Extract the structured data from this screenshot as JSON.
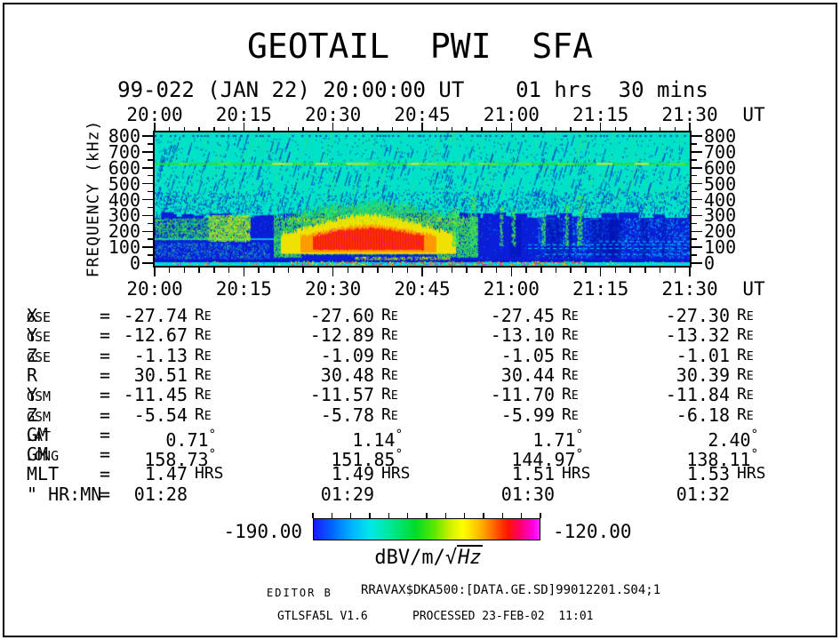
{
  "title": "GEOTAIL  PWI  SFA",
  "subtitle": "99-022 (JAN 22) 20:00:00 UT    01 hrs  30 mins",
  "time_axis": {
    "labels": [
      "20:00",
      "20:15",
      "20:30",
      "20:45",
      "21:00",
      "21:15",
      "21:30"
    ],
    "unit_label": "UT"
  },
  "freq_axis": {
    "title": "FREQUENCY (kHz)",
    "labels": [
      "800",
      "700",
      "600",
      "500",
      "400",
      "300",
      "200",
      "100",
      "0"
    ]
  },
  "ephemeris": {
    "equals_sign": "=",
    "units": {
      "Re": {
        "main": "R",
        "sub": "E"
      },
      "deg": "°",
      "hrs": "HRS"
    },
    "rows": [
      {
        "label": "X",
        "sub": "GSE",
        "unit": "Re",
        "values": [
          "-27.74",
          "-27.60",
          "-27.45",
          "-27.30"
        ]
      },
      {
        "label": "Y",
        "sub": "GSE",
        "unit": "Re",
        "values": [
          "-12.67",
          "-12.89",
          "-13.10",
          "-13.32"
        ]
      },
      {
        "label": "Z",
        "sub": "GSE",
        "unit": "Re",
        "values": [
          "-1.13",
          "-1.09",
          "-1.05",
          "-1.01"
        ]
      },
      {
        "label": "R",
        "sub": "",
        "unit": "Re",
        "values": [
          "30.51",
          "30.48",
          "30.44",
          "30.39"
        ]
      },
      {
        "label": "Y",
        "sub": "GSM",
        "unit": "Re",
        "values": [
          "-11.45",
          "-11.57",
          "-11.70",
          "-11.84"
        ]
      },
      {
        "label": "Z",
        "sub": "GSM",
        "unit": "Re",
        "values": [
          "-5.54",
          "-5.78",
          "-5.99",
          "-6.18"
        ]
      },
      {
        "label": "GM",
        "sub": "LAT",
        "unit": "deg",
        "values": [
          "0.71",
          "1.14",
          "1.71",
          "2.40"
        ]
      },
      {
        "label": "GM",
        "sub": "LONG",
        "unit": "deg",
        "values": [
          "158.73",
          "151.85",
          "144.97",
          "138.11"
        ]
      },
      {
        "label": "MLT",
        "sub": "",
        "unit": "hrs",
        "values": [
          "1.47",
          "1.49",
          "1.51",
          "1.53"
        ]
      },
      {
        "label": "\" HR:MN",
        "sub": "",
        "unit": "",
        "values": [
          "01:28",
          "01:29",
          "01:30",
          "01:32"
        ]
      }
    ]
  },
  "colorbar": {
    "min_label": "-190.00",
    "max_label": "-120.00",
    "unit_label": "dBV/m/√Hz",
    "unit_prefix": "dBV/m/",
    "radical": "√",
    "radicand": "Hz",
    "gradient": [
      [
        "#1A1AFF",
        0
      ],
      [
        "#0064FF",
        8
      ],
      [
        "#00B4FF",
        17
      ],
      [
        "#00E8E8",
        25
      ],
      [
        "#00E8A0",
        33
      ],
      [
        "#00DC28",
        45
      ],
      [
        "#64E800",
        54
      ],
      [
        "#C8F000",
        60
      ],
      [
        "#FFFF00",
        66
      ],
      [
        "#FFC800",
        72
      ],
      [
        "#FF8C00",
        77
      ],
      [
        "#FF4600",
        82
      ],
      [
        "#FF1400",
        86
      ],
      [
        "#FF0064",
        91
      ],
      [
        "#FF00DC",
        97
      ],
      [
        "#FF28FF",
        100
      ]
    ]
  },
  "footer": {
    "editor": "EDITOR B",
    "file": "RRAVAX$DKA500:[DATA.GE.SD]99012201.S04;1",
    "program": "GTLSFA5L V1.6",
    "processed": "PROCESSED 23-FEB-02  11:01"
  },
  "chart_data": {
    "type": "heatmap",
    "subtype": "radio-spectrogram",
    "title": "GEOTAIL PWI SFA",
    "x": {
      "label": "UT",
      "start_ut": "20:00",
      "end_ut": "21:30",
      "duration_min": 90,
      "major_tick_min": 15,
      "minor_tick_min": 2.5
    },
    "y": {
      "label": "FREQUENCY (kHz)",
      "min": 0,
      "max": 800,
      "major_tick": 100,
      "minor_tick": 50
    },
    "z": {
      "label": "dBV/m/√Hz",
      "min": -190,
      "max": -120
    },
    "colormap_stops": [
      "#1A1AFF",
      "#0090FF",
      "#00E0E0",
      "#00E090",
      "#00D800",
      "#8CE800",
      "#FFFF00",
      "#FFA000",
      "#FF3000",
      "#FF0050",
      "#FF00E6"
    ],
    "features": [
      {
        "id": "background",
        "color": "#00E2C8",
        "level_db": -176
      },
      {
        "id": "diagonal-striations",
        "color": "#0726CC",
        "level_db": -184
      },
      {
        "id": "narrowband-emission-line",
        "freq_khz": 630,
        "t_range_min": [
          0,
          90
        ],
        "color": "#2ADF2A",
        "level_db": -165
      },
      {
        "id": "low-frequency-continuum",
        "freq_range_khz": [
          15,
          285
        ],
        "t_range_min": [
          0,
          90
        ],
        "color": "#0A1ED8",
        "level_db": -188
      },
      {
        "id": "cyan-line",
        "freq_khz": 155,
        "t_range_min": [
          0,
          43
        ],
        "level_db": -172
      },
      {
        "id": "precursor-patches",
        "t_range_min": [
          9,
          16
        ],
        "freq_range_khz": [
          140,
          305
        ],
        "level_db": -158
      },
      {
        "id": "akr-main-burst",
        "t_range_min": [
          20,
          54
        ],
        "freq_range_khz": [
          40,
          380
        ],
        "core_t_range_min": [
          25,
          46
        ],
        "core_freq_range_khz": [
          80,
          220
        ],
        "peak_level_db": -130
      },
      {
        "id": "narrow-bursts",
        "t_centers_min": [
          50,
          53,
          58,
          60,
          65,
          69,
          71
        ],
        "freq_range_khz": [
          110,
          430
        ],
        "level_db": -160
      },
      {
        "id": "bottom-edge-band",
        "freq_range_khz": [
          0,
          18
        ],
        "level_db": -186
      }
    ]
  }
}
